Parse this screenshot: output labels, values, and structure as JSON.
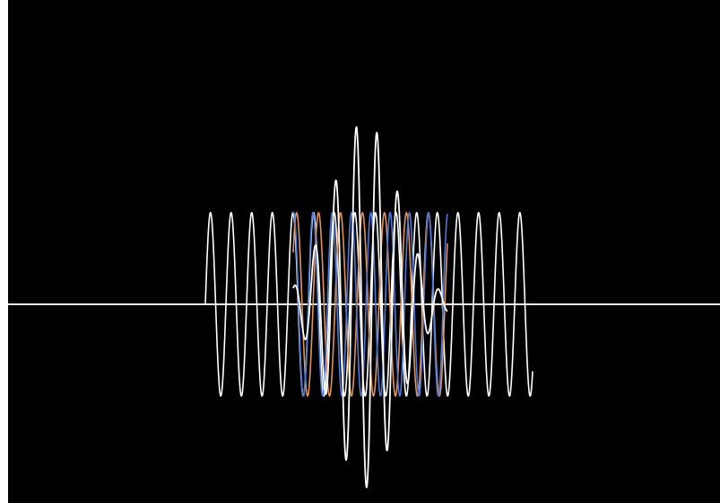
{
  "chart_data": {
    "type": "line",
    "title": "",
    "xlabel": "",
    "ylabel": "",
    "grid": false,
    "legend": "none",
    "xlim": [
      0,
      784
    ],
    "ylim": [
      -1.05,
      1.05
    ],
    "colors": {
      "background": "#000000",
      "axis": "#f2e8d8",
      "wave_a": "#ffffff",
      "wave_b": "#e0935a",
      "wave_c": "#4f78d8",
      "sum": "#ffffff"
    },
    "series": [
      {
        "id": "wave_a",
        "color": "#ffffff",
        "x_range": [
          220,
          585
        ],
        "amplitude": 0.5,
        "period": 23,
        "phase": 0
      },
      {
        "id": "wave_b",
        "color": "#e0935a",
        "x_range": [
          318,
          490
        ],
        "amplitude": 0.5,
        "period": 24.5,
        "phase": 0.6
      },
      {
        "id": "wave_c",
        "color": "#4f78d8",
        "x_range": [
          318,
          490
        ],
        "amplitude": 0.5,
        "period": 21.5,
        "phase": 1.4
      },
      {
        "id": "sum",
        "color": "#ffffff",
        "x_range": [
          318,
          490
        ],
        "amplitude_peak": 1.0,
        "period": 23,
        "envelope_center": 398,
        "envelope_width": 52
      }
    ]
  }
}
